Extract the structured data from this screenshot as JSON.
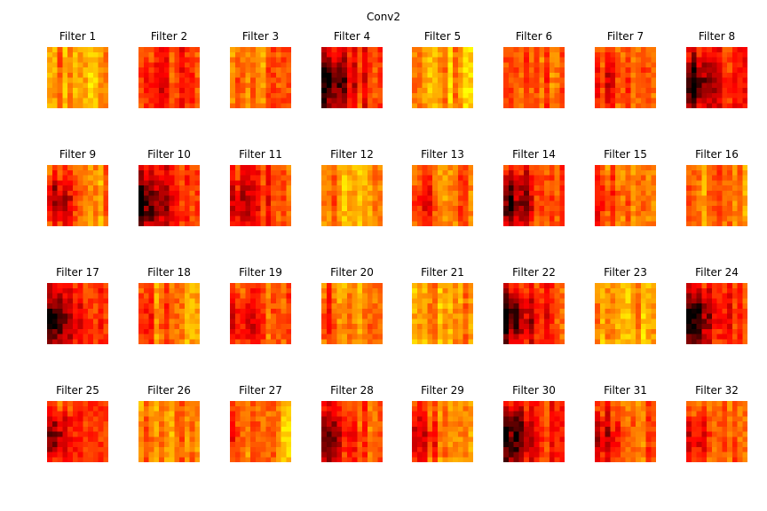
{
  "figure": {
    "title": "Conv2"
  },
  "chart_data": {
    "type": "heatmap",
    "title": "Conv2",
    "colormap": "hot",
    "grid": false,
    "axes_visible": false,
    "panels": [
      {
        "title": "Filter 1",
        "tone": 0.58,
        "dark_spot": 0.05
      },
      {
        "title": "Filter 2",
        "tone": 0.46,
        "dark_spot": 0.25
      },
      {
        "title": "Filter 3",
        "tone": 0.55,
        "dark_spot": 0.15
      },
      {
        "title": "Filter 4",
        "tone": 0.44,
        "dark_spot": 0.95
      },
      {
        "title": "Filter 5",
        "tone": 0.6,
        "dark_spot": 0.05
      },
      {
        "title": "Filter 6",
        "tone": 0.5,
        "dark_spot": 0.0
      },
      {
        "title": "Filter 7",
        "tone": 0.5,
        "dark_spot": 0.35
      },
      {
        "title": "Filter 8",
        "tone": 0.44,
        "dark_spot": 0.95
      },
      {
        "title": "Filter 9",
        "tone": 0.55,
        "dark_spot": 0.7
      },
      {
        "title": "Filter 10",
        "tone": 0.44,
        "dark_spot": 0.9
      },
      {
        "title": "Filter 11",
        "tone": 0.46,
        "dark_spot": 0.4
      },
      {
        "title": "Filter 12",
        "tone": 0.58,
        "dark_spot": 0.1
      },
      {
        "title": "Filter 13",
        "tone": 0.52,
        "dark_spot": 0.3
      },
      {
        "title": "Filter 14",
        "tone": 0.46,
        "dark_spot": 0.9
      },
      {
        "title": "Filter 15",
        "tone": 0.55,
        "dark_spot": 0.3
      },
      {
        "title": "Filter 16",
        "tone": 0.52,
        "dark_spot": 0.0
      },
      {
        "title": "Filter 17",
        "tone": 0.48,
        "dark_spot": 0.85
      },
      {
        "title": "Filter 18",
        "tone": 0.55,
        "dark_spot": 0.2
      },
      {
        "title": "Filter 19",
        "tone": 0.5,
        "dark_spot": 0.5
      },
      {
        "title": "Filter 20",
        "tone": 0.56,
        "dark_spot": 0.3
      },
      {
        "title": "Filter 21",
        "tone": 0.58,
        "dark_spot": 0.1
      },
      {
        "title": "Filter 22",
        "tone": 0.44,
        "dark_spot": 0.95
      },
      {
        "title": "Filter 23",
        "tone": 0.6,
        "dark_spot": 0.1
      },
      {
        "title": "Filter 24",
        "tone": 0.45,
        "dark_spot": 1.0
      },
      {
        "title": "Filter 25",
        "tone": 0.52,
        "dark_spot": 0.85
      },
      {
        "title": "Filter 26",
        "tone": 0.56,
        "dark_spot": 0.2
      },
      {
        "title": "Filter 27",
        "tone": 0.57,
        "dark_spot": 0.2
      },
      {
        "title": "Filter 28",
        "tone": 0.5,
        "dark_spot": 0.7
      },
      {
        "title": "Filter 29",
        "tone": 0.55,
        "dark_spot": 0.5
      },
      {
        "title": "Filter 30",
        "tone": 0.45,
        "dark_spot": 0.95
      },
      {
        "title": "Filter 31",
        "tone": 0.52,
        "dark_spot": 0.6
      },
      {
        "title": "Filter 32",
        "tone": 0.5,
        "dark_spot": 0.5
      }
    ]
  }
}
